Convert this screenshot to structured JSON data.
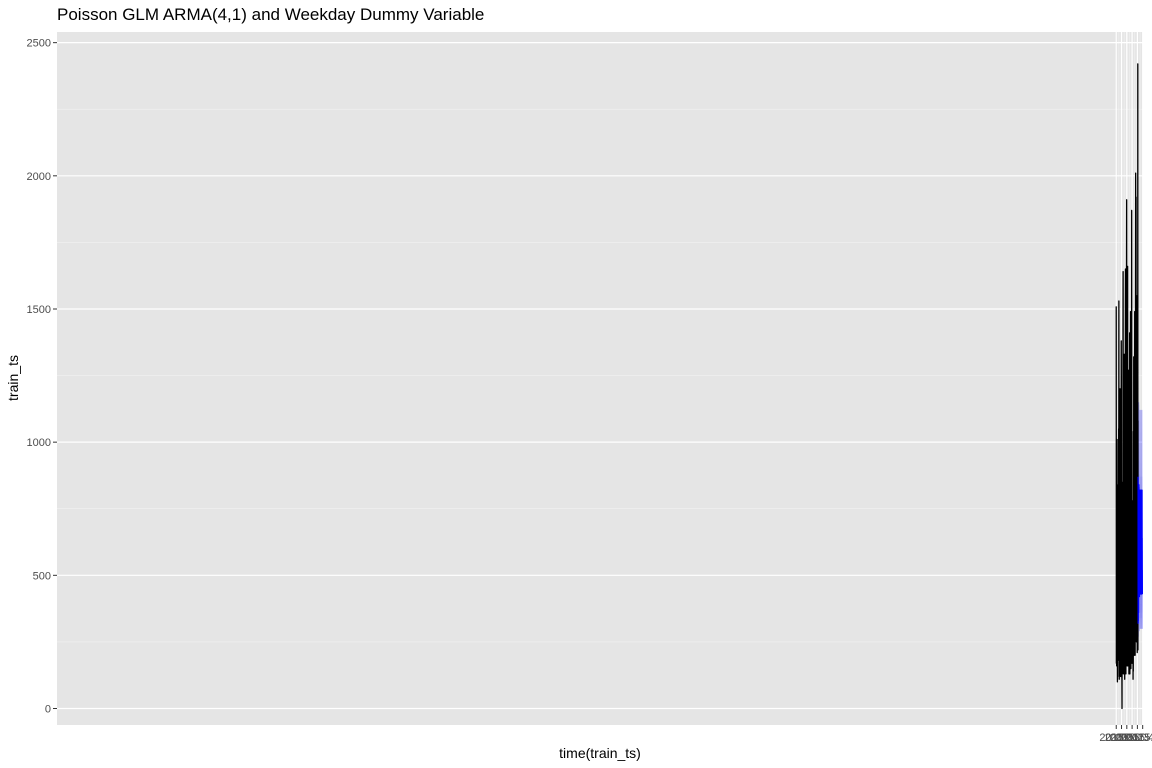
{
  "chart_data": {
    "type": "line",
    "title": "Poisson GLM ARMA(4,1) and Weekday Dummy Variable",
    "xlabel": "time(train_ts)",
    "ylabel": "train_ts",
    "xlim": [
      1994.975,
      2015.506
    ],
    "ylim": [
      -62,
      2540
    ],
    "x_ticks": [
      2015.0,
      2015.1,
      2015.2,
      2015.3,
      2015.4,
      2015.5
    ],
    "x_tick_labels": [
      "2015.0",
      "2015.1",
      "2015.2",
      "2015.3",
      "2015.4",
      "2015.5"
    ],
    "y_ticks": [
      0,
      500,
      1000,
      1500,
      2000,
      2500
    ],
    "y_tick_labels": [
      "0",
      "500",
      "1000",
      "1500",
      "2000",
      "2500"
    ],
    "grid": true,
    "background": "#e5e5e5",
    "series": [
      {
        "role": "observed",
        "color": "#000000",
        "x_start": 2015.0,
        "x_end": 2015.413,
        "anchors": [
          [
            2015.0,
            1510
          ],
          [
            2015.002,
            170
          ],
          [
            2015.005,
            420
          ],
          [
            2015.008,
            160
          ],
          [
            2015.01,
            570
          ],
          [
            2015.013,
            160
          ],
          [
            2015.015,
            1010
          ],
          [
            2015.018,
            200
          ],
          [
            2015.02,
            340
          ],
          [
            2015.022,
            100
          ],
          [
            2015.025,
            330
          ],
          [
            2015.027,
            120
          ],
          [
            2015.03,
            450
          ],
          [
            2015.032,
            180
          ],
          [
            2015.035,
            750
          ],
          [
            2015.037,
            220
          ],
          [
            2015.04,
            840
          ],
          [
            2015.042,
            250
          ],
          [
            2015.045,
            1050
          ],
          [
            2015.047,
            240
          ],
          [
            2015.0498,
            1530
          ],
          [
            2015.052,
            330
          ],
          [
            2015.055,
            470
          ],
          [
            2015.057,
            110
          ],
          [
            2015.06,
            600
          ],
          [
            2015.062,
            170
          ],
          [
            2015.065,
            580
          ],
          [
            2015.067,
            160
          ],
          [
            2015.07,
            1200
          ],
          [
            2015.071,
            260
          ],
          [
            2015.072,
            1200
          ],
          [
            2015.074,
            1000
          ],
          [
            2015.077,
            250
          ],
          [
            2015.08,
            480
          ],
          [
            2015.082,
            120
          ],
          [
            2015.085,
            670
          ],
          [
            2015.087,
            200
          ],
          [
            2015.09,
            760
          ],
          [
            2015.092,
            230
          ],
          [
            2015.095,
            1380
          ],
          [
            2015.097,
            1200
          ],
          [
            2015.1,
            260
          ],
          [
            2015.102,
            350
          ],
          [
            2015.105,
            120
          ],
          [
            2015.107,
            110
          ],
          [
            2015.109,
            0
          ],
          [
            2015.112,
            420
          ],
          [
            2015.115,
            130
          ],
          [
            2015.117,
            600
          ],
          [
            2015.12,
            200
          ],
          [
            2015.122,
            850
          ],
          [
            2015.125,
            240
          ],
          [
            2015.128,
            1420
          ],
          [
            2015.13,
            1640
          ],
          [
            2015.132,
            290
          ],
          [
            2015.135,
            560
          ],
          [
            2015.137,
            130
          ],
          [
            2015.14,
            620
          ],
          [
            2015.142,
            200
          ],
          [
            2015.145,
            890
          ],
          [
            2015.147,
            260
          ],
          [
            2015.15,
            1270
          ],
          [
            2015.152,
            1330
          ],
          [
            2015.155,
            420
          ],
          [
            2015.158,
            500
          ],
          [
            2015.16,
            110
          ],
          [
            2015.163,
            720
          ],
          [
            2015.165,
            250
          ],
          [
            2015.168,
            920
          ],
          [
            2015.17,
            280
          ],
          [
            2015.173,
            1510
          ],
          [
            2015.175,
            1650
          ],
          [
            2015.178,
            380
          ],
          [
            2015.18,
            600
          ],
          [
            2015.183,
            130
          ],
          [
            2015.185,
            640
          ],
          [
            2015.188,
            230
          ],
          [
            2015.19,
            1110
          ],
          [
            2015.193,
            270
          ],
          [
            2015.195,
            1650
          ],
          [
            2015.197,
            1910
          ],
          [
            2015.2,
            400
          ],
          [
            2015.203,
            680
          ],
          [
            2015.205,
            160
          ],
          [
            2015.208,
            680
          ],
          [
            2015.21,
            230
          ],
          [
            2015.213,
            1430
          ],
          [
            2015.215,
            1660
          ],
          [
            2015.218,
            430
          ],
          [
            2015.22,
            660
          ],
          [
            2015.223,
            160
          ],
          [
            2015.225,
            620
          ],
          [
            2015.228,
            220
          ],
          [
            2015.23,
            1180
          ],
          [
            2015.232,
            1270
          ],
          [
            2015.235,
            380
          ],
          [
            2015.238,
            500
          ],
          [
            2015.24,
            130
          ],
          [
            2015.243,
            700
          ],
          [
            2015.245,
            240
          ],
          [
            2015.248,
            990
          ],
          [
            2015.25,
            420
          ],
          [
            2015.253,
            1410
          ],
          [
            2015.255,
            570
          ],
          [
            2015.258,
            130
          ],
          [
            2015.26,
            600
          ],
          [
            2015.262,
            150
          ],
          [
            2015.265,
            720
          ],
          [
            2015.267,
            260
          ],
          [
            2015.27,
            1490
          ],
          [
            2015.271,
            330
          ],
          [
            2015.272,
            1450
          ],
          [
            2015.275,
            600
          ],
          [
            2015.278,
            150
          ],
          [
            2015.28,
            700
          ],
          [
            2015.283,
            230
          ],
          [
            2015.285,
            950
          ],
          [
            2015.287,
            300
          ],
          [
            2015.29,
            1120
          ],
          [
            2015.292,
            1870
          ],
          [
            2015.295,
            600
          ],
          [
            2015.298,
            170
          ],
          [
            2015.3,
            620
          ],
          [
            2015.303,
            250
          ],
          [
            2015.305,
            780
          ],
          [
            2015.308,
            220
          ],
          [
            2015.31,
            600
          ],
          [
            2015.312,
            190
          ],
          [
            2015.315,
            650
          ],
          [
            2015.318,
            110
          ],
          [
            2015.32,
            580
          ],
          [
            2015.322,
            140
          ],
          [
            2015.325,
            1040
          ],
          [
            2015.328,
            330
          ],
          [
            2015.3305,
            1320
          ],
          [
            2015.332,
            1280
          ],
          [
            2015.335,
            200
          ],
          [
            2015.337,
            620
          ],
          [
            2015.34,
            200
          ],
          [
            2015.342,
            700
          ],
          [
            2015.345,
            250
          ],
          [
            2015.347,
            1040
          ],
          [
            2015.349,
            1490
          ],
          [
            2015.35,
            1480
          ],
          [
            2015.352,
            230
          ],
          [
            2015.355,
            640
          ],
          [
            2015.357,
            200
          ],
          [
            2015.36,
            880
          ],
          [
            2015.362,
            300
          ],
          [
            2015.365,
            1610
          ],
          [
            2015.3675,
            2010
          ],
          [
            2015.37,
            1200
          ],
          [
            2015.372,
            840
          ],
          [
            2015.374,
            1600
          ],
          [
            2015.375,
            1920
          ],
          [
            2015.377,
            270
          ],
          [
            2015.38,
            570
          ],
          [
            2015.382,
            250
          ],
          [
            2015.385,
            1310
          ],
          [
            2015.387,
            300
          ],
          [
            2015.39,
            1260
          ],
          [
            2015.392,
            300
          ],
          [
            2015.395,
            1550
          ],
          [
            2015.397,
            210
          ],
          [
            2015.4,
            720
          ],
          [
            2015.402,
            240
          ],
          [
            2015.405,
            1370
          ],
          [
            2015.4065,
            1340
          ],
          [
            2015.4075,
            2420
          ],
          [
            2015.409,
            600
          ],
          [
            2015.41,
            220
          ],
          [
            2015.411,
            1080
          ],
          [
            2015.412,
            600
          ],
          [
            2015.413,
            600
          ]
        ]
      },
      {
        "role": "forecast-mean",
        "color": "#0000ff",
        "x_start": 2015.413,
        "x_end": 2015.496,
        "values": [
          870,
          320,
          720,
          330,
          520,
          420,
          560,
          360,
          540,
          480,
          620,
          560,
          840,
          820,
          830,
          620,
          640,
          520,
          520,
          430,
          430,
          420,
          440,
          440,
          500,
          500,
          570,
          570,
          820,
          820,
          820,
          640,
          640,
          520,
          520,
          430,
          430,
          430,
          440,
          440,
          500,
          500,
          570,
          570,
          820,
          820,
          820,
          640,
          640,
          520,
          520,
          430,
          430,
          430,
          440,
          440,
          500,
          500,
          570,
          570,
          820,
          820,
          820,
          640,
          640,
          520,
          520,
          430,
          430,
          430
        ]
      },
      {
        "role": "forecast-band",
        "color": "#0000ff",
        "x_start": 2015.413,
        "x_end": 2015.496,
        "lower": [
          620,
          230,
          480,
          240,
          360,
          300,
          380,
          270,
          370,
          330,
          420,
          380,
          560,
          560,
          560,
          430,
          440,
          360,
          360,
          300,
          300,
          290,
          300,
          300,
          340,
          340,
          390,
          390,
          560,
          560,
          560,
          440,
          440,
          360,
          360,
          300,
          300,
          300,
          300,
          300,
          340,
          340,
          390,
          390,
          560,
          560,
          560,
          440,
          440,
          360,
          360,
          300,
          300,
          300,
          300,
          300,
          340,
          340,
          390,
          390,
          560,
          560,
          560,
          440,
          440,
          360,
          360,
          300,
          300,
          300
        ],
        "upper": [
          1150,
          440,
          980,
          450,
          700,
          570,
          760,
          490,
          730,
          650,
          840,
          760,
          1150,
          1120,
          1140,
          850,
          880,
          710,
          710,
          590,
          590,
          570,
          600,
          600,
          690,
          690,
          780,
          780,
          1120,
          1120,
          1120,
          870,
          870,
          710,
          710,
          590,
          590,
          590,
          600,
          600,
          690,
          690,
          780,
          780,
          1120,
          1120,
          1120,
          870,
          870,
          710,
          710,
          590,
          590,
          590,
          600,
          600,
          690,
          690,
          780,
          780,
          1120,
          1120,
          1120,
          870,
          870,
          710,
          710,
          590,
          590,
          590
        ]
      }
    ]
  }
}
